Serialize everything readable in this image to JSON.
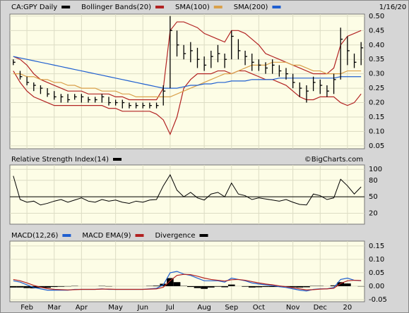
{
  "chart_data": [
    {
      "type": "ohlc",
      "date": "1/16/20",
      "series": [
        {
          "name": "CA:GPY Daily",
          "color": "#000000",
          "high": [
            0.35,
            0.31,
            0.29,
            0.27,
            0.26,
            0.25,
            0.24,
            0.23,
            0.23,
            0.23,
            0.23,
            0.22,
            0.22,
            0.23,
            0.22,
            0.21,
            0.21,
            0.2,
            0.2,
            0.2,
            0.2,
            0.2,
            0.26,
            0.5,
            0.45,
            0.4,
            0.41,
            0.39,
            0.36,
            0.38,
            0.4,
            0.37,
            0.45,
            0.42,
            0.38,
            0.37,
            0.35,
            0.34,
            0.35,
            0.33,
            0.32,
            0.3,
            0.27,
            0.26,
            0.29,
            0.28,
            0.26,
            0.3,
            0.46,
            0.43,
            0.37,
            0.41
          ],
          "low": [
            0.33,
            0.28,
            0.26,
            0.24,
            0.23,
            0.22,
            0.21,
            0.2,
            0.2,
            0.21,
            0.2,
            0.2,
            0.2,
            0.2,
            0.19,
            0.19,
            0.18,
            0.18,
            0.18,
            0.18,
            0.18,
            0.18,
            0.19,
            0.25,
            0.36,
            0.35,
            0.34,
            0.32,
            0.31,
            0.32,
            0.34,
            0.32,
            0.35,
            0.35,
            0.33,
            0.31,
            0.31,
            0.3,
            0.3,
            0.29,
            0.28,
            0.25,
            0.22,
            0.2,
            0.24,
            0.23,
            0.22,
            0.23,
            0.28,
            0.33,
            0.32,
            0.33
          ],
          "values": [
            0.34,
            0.29,
            0.27,
            0.26,
            0.25,
            0.23,
            0.22,
            0.22,
            0.21,
            0.22,
            0.22,
            0.21,
            0.21,
            0.22,
            0.2,
            0.2,
            0.2,
            0.19,
            0.19,
            0.19,
            0.19,
            0.19,
            0.24,
            0.45,
            0.4,
            0.37,
            0.38,
            0.35,
            0.33,
            0.36,
            0.37,
            0.35,
            0.43,
            0.38,
            0.36,
            0.34,
            0.33,
            0.32,
            0.33,
            0.31,
            0.3,
            0.27,
            0.25,
            0.24,
            0.27,
            0.26,
            0.24,
            0.28,
            0.42,
            0.38,
            0.34,
            0.39
          ]
        },
        {
          "name": "Bollinger Bands(20)",
          "color": "#b22222",
          "upper": [
            0.36,
            0.35,
            0.33,
            0.3,
            0.28,
            0.27,
            0.26,
            0.25,
            0.24,
            0.24,
            0.24,
            0.23,
            0.23,
            0.23,
            0.23,
            0.22,
            0.22,
            0.21,
            0.21,
            0.21,
            0.21,
            0.21,
            0.25,
            0.45,
            0.48,
            0.48,
            0.47,
            0.46,
            0.44,
            0.43,
            0.42,
            0.41,
            0.45,
            0.45,
            0.44,
            0.42,
            0.4,
            0.37,
            0.36,
            0.35,
            0.34,
            0.33,
            0.32,
            0.31,
            0.3,
            0.3,
            0.3,
            0.32,
            0.4,
            0.43,
            0.44,
            0.45
          ],
          "lower": [
            0.31,
            0.27,
            0.24,
            0.22,
            0.21,
            0.2,
            0.19,
            0.19,
            0.19,
            0.19,
            0.19,
            0.19,
            0.19,
            0.19,
            0.18,
            0.18,
            0.17,
            0.17,
            0.17,
            0.17,
            0.17,
            0.16,
            0.14,
            0.09,
            0.15,
            0.25,
            0.28,
            0.3,
            0.3,
            0.3,
            0.31,
            0.31,
            0.3,
            0.31,
            0.31,
            0.3,
            0.29,
            0.28,
            0.28,
            0.27,
            0.26,
            0.24,
            0.22,
            0.21,
            0.21,
            0.22,
            0.22,
            0.22,
            0.2,
            0.19,
            0.2,
            0.23
          ]
        },
        {
          "name": "SMA(100)",
          "color": "#d9a04a",
          "values": [
            0.3,
            0.3,
            0.29,
            0.29,
            0.28,
            0.28,
            0.27,
            0.27,
            0.26,
            0.26,
            0.25,
            0.25,
            0.25,
            0.24,
            0.24,
            0.24,
            0.23,
            0.23,
            0.22,
            0.22,
            0.22,
            0.22,
            0.22,
            0.22,
            0.23,
            0.24,
            0.25,
            0.26,
            0.27,
            0.28,
            0.29,
            0.3,
            0.3,
            0.31,
            0.32,
            0.33,
            0.33,
            0.33,
            0.34,
            0.34,
            0.34,
            0.33,
            0.33,
            0.32,
            0.31,
            0.31,
            0.3,
            0.3,
            0.3,
            0.31,
            0.31,
            0.31
          ]
        },
        {
          "name": "SMA(200)",
          "color": "#1f5fd0",
          "values": [
            0.36,
            0.355,
            0.35,
            0.345,
            0.34,
            0.335,
            0.33,
            0.325,
            0.32,
            0.315,
            0.31,
            0.305,
            0.3,
            0.295,
            0.29,
            0.285,
            0.28,
            0.275,
            0.27,
            0.265,
            0.26,
            0.255,
            0.25,
            0.25,
            0.25,
            0.255,
            0.26,
            0.26,
            0.265,
            0.265,
            0.27,
            0.27,
            0.275,
            0.275,
            0.275,
            0.28,
            0.28,
            0.28,
            0.28,
            0.285,
            0.285,
            0.285,
            0.285,
            0.285,
            0.285,
            0.285,
            0.285,
            0.285,
            0.29,
            0.29,
            0.29,
            0.29
          ]
        }
      ],
      "ylim": [
        0.04,
        0.507
      ],
      "yticks": [
        {
          "value": 0.5,
          "label": "0.50"
        },
        0.45,
        {
          "value": 0.4,
          "label": "0.40"
        },
        0.35,
        {
          "value": 0.3,
          "label": "0.30"
        },
        0.25,
        {
          "value": 0.2,
          "label": "0.20"
        },
        0.15,
        {
          "value": 0.1,
          "label": "0.10"
        },
        0.05
      ],
      "grid": true
    },
    {
      "type": "line",
      "source": "©BigCharts.com",
      "series": [
        {
          "name": "Relative Strength Index(14)",
          "color": "#000000",
          "values": [
            88,
            45,
            40,
            42,
            35,
            38,
            42,
            45,
            40,
            44,
            48,
            42,
            40,
            45,
            42,
            44,
            40,
            38,
            42,
            40,
            44,
            45,
            70,
            90,
            62,
            50,
            58,
            48,
            44,
            55,
            58,
            50,
            75,
            55,
            52,
            45,
            48,
            46,
            44,
            42,
            45,
            40,
            36,
            35,
            55,
            52,
            45,
            48,
            82,
            70,
            55,
            68
          ]
        }
      ],
      "ylim": [
        0,
        108
      ],
      "yticks": [
        100,
        80,
        50,
        20
      ],
      "reference_line": 50,
      "grid": true
    },
    {
      "type": "macd",
      "categories": [
        null,
        null,
        "Feb",
        null,
        null,
        null,
        "Mar",
        null,
        null,
        null,
        "Apr",
        null,
        null,
        null,
        null,
        "May",
        null,
        null,
        null,
        "Jun",
        null,
        null,
        null,
        "Jul",
        null,
        null,
        null,
        null,
        "Aug",
        null,
        null,
        null,
        "Sep",
        null,
        null,
        null,
        "Oct",
        null,
        null,
        null,
        null,
        "Nov",
        null,
        null,
        null,
        "Dec",
        null,
        null,
        null,
        "20",
        null,
        null
      ],
      "series": [
        {
          "name": "MACD(12,26)",
          "color": "#1f5fd0",
          "values": [
            0.02,
            0.015,
            0.005,
            -0.005,
            -0.01,
            -0.015,
            -0.015,
            -0.015,
            -0.015,
            -0.012,
            -0.012,
            -0.012,
            -0.012,
            -0.01,
            -0.012,
            -0.012,
            -0.012,
            -0.012,
            -0.012,
            -0.012,
            -0.01,
            -0.008,
            0.005,
            0.05,
            0.055,
            0.045,
            0.04,
            0.03,
            0.02,
            0.02,
            0.02,
            0.015,
            0.03,
            0.025,
            0.02,
            0.012,
            0.008,
            0.005,
            0.002,
            -0.002,
            -0.005,
            -0.01,
            -0.015,
            -0.018,
            -0.012,
            -0.01,
            -0.01,
            -0.005,
            0.025,
            0.03,
            0.022,
            0.02
          ]
        },
        {
          "name": "MACD EMA(9)",
          "color": "#b22222",
          "values": [
            0.025,
            0.02,
            0.012,
            0.003,
            -0.004,
            -0.009,
            -0.012,
            -0.013,
            -0.014,
            -0.013,
            -0.012,
            -0.012,
            -0.012,
            -0.011,
            -0.011,
            -0.012,
            -0.012,
            -0.012,
            -0.012,
            -0.012,
            -0.011,
            -0.01,
            -0.004,
            0.02,
            0.04,
            0.044,
            0.043,
            0.037,
            0.03,
            0.025,
            0.022,
            0.019,
            0.024,
            0.025,
            0.022,
            0.017,
            0.012,
            0.008,
            0.005,
            0.001,
            -0.002,
            -0.006,
            -0.01,
            -0.014,
            -0.013,
            -0.011,
            -0.01,
            -0.008,
            0.01,
            0.02,
            0.022,
            0.021
          ]
        },
        {
          "name": "Divergence",
          "color": "#000000",
          "values": [
            -0.005,
            -0.005,
            -0.007,
            -0.008,
            -0.006,
            -0.006,
            -0.003,
            -0.002,
            -0.001,
            0.001,
            0,
            0,
            0,
            0.001,
            -0.001,
            0,
            0,
            0,
            0,
            0,
            0.001,
            0.002,
            0.009,
            0.03,
            0.015,
            0.001,
            -0.003,
            -0.007,
            -0.01,
            -0.005,
            -0.002,
            -0.004,
            0.006,
            0,
            -0.002,
            -0.005,
            -0.004,
            -0.003,
            -0.003,
            -0.003,
            -0.003,
            -0.004,
            -0.005,
            -0.004,
            0.001,
            0.001,
            0,
            0.003,
            0.015,
            0.01,
            0,
            -0.001
          ]
        }
      ],
      "ylim": [
        -0.058,
        0.168
      ],
      "yticks": [
        0.15,
        {
          "value": 0.1,
          "label": "0.10"
        },
        0.05,
        {
          "value": 0,
          "label": "0.00"
        },
        -0.05
      ],
      "grid": true
    }
  ]
}
